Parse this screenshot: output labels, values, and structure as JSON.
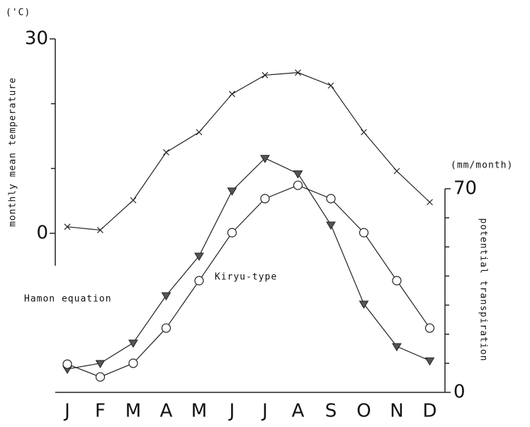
{
  "chart_data": {
    "type": "line",
    "y_unit": "('C)",
    "y2_unit": "(mm/month)",
    "ylabel": "monthly mean temperature",
    "y2label": "potential transpiration",
    "categories": [
      "J",
      "F",
      "M",
      "A",
      "M",
      "J",
      "J",
      "A",
      "S",
      "O",
      "N",
      "D"
    ],
    "ylim": [
      -5,
      30
    ],
    "yticks": [
      0,
      30
    ],
    "yminor": [
      10,
      20
    ],
    "y2lim": [
      0,
      70
    ],
    "y2ticks": [
      0,
      70
    ],
    "y2minor": [
      10,
      20,
      30,
      40,
      50,
      60
    ],
    "color": "#222",
    "series": [
      {
        "marker": "x",
        "axis": "y",
        "values": [
          1.0,
          0.5,
          5.1,
          12.5,
          15.6,
          21.5,
          24.4,
          24.8,
          22.8,
          15.6,
          9.6,
          4.8
        ]
      },
      {
        "name": "Hamon equation",
        "marker": "triangle",
        "axis": "y2",
        "values": [
          8.0,
          10.0,
          17.0,
          33.3,
          46.9,
          69.3,
          80.5,
          75.2,
          57.6,
          30.4,
          15.8,
          10.9
        ]
      },
      {
        "name": "Kiryu-type",
        "marker": "circle",
        "axis": "y2",
        "values": [
          9.7,
          5.3,
          10.0,
          22.1,
          38.4,
          54.9,
          66.6,
          71.2,
          66.6,
          54.9,
          38.4,
          22.1
        ]
      }
    ]
  }
}
